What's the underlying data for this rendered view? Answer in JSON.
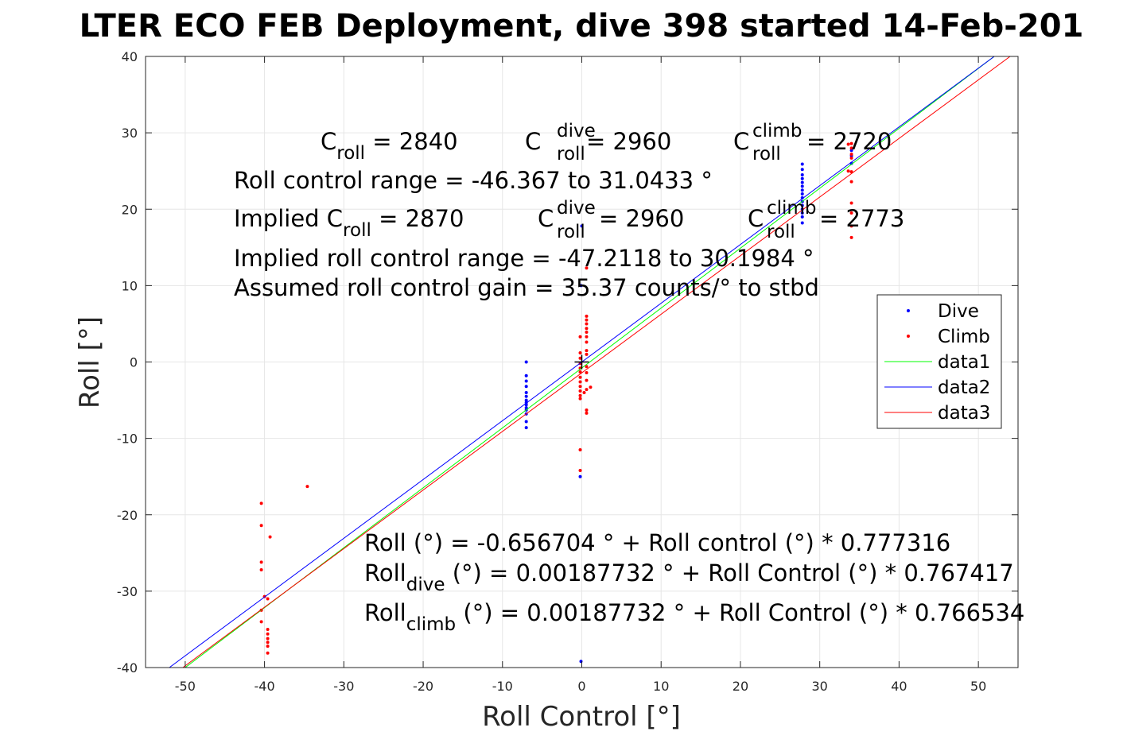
{
  "chart_data": {
    "type": "scatter",
    "title": "LTER ECO FEB Deployment, dive 398 started 14-Feb-201",
    "xlabel": "Roll Control [°]",
    "ylabel": "Roll [°]",
    "xlim": [
      -55,
      55
    ],
    "ylim": [
      -40,
      40
    ],
    "xticks": [
      -50,
      -40,
      -30,
      -20,
      -10,
      0,
      10,
      20,
      30,
      40,
      50
    ],
    "yticks": [
      -40,
      -30,
      -20,
      -10,
      0,
      10,
      20,
      30,
      40
    ],
    "grid": true,
    "legend_position": "right",
    "series": [
      {
        "name": "Dive",
        "kind": "points",
        "color": "#0000ff",
        "points": [
          [
            -7,
            0
          ],
          [
            -7,
            -1.8
          ],
          [
            -7,
            -2.5
          ],
          [
            -7,
            -3.2
          ],
          [
            -7,
            -4
          ],
          [
            -7,
            -4.5
          ],
          [
            -7,
            -5
          ],
          [
            -7,
            -5.3
          ],
          [
            -7,
            -5.6
          ],
          [
            -7,
            -6
          ],
          [
            -7,
            -6.3
          ],
          [
            -7,
            -6.8
          ],
          [
            -7,
            -7.8
          ],
          [
            -7,
            -8.6
          ],
          [
            -0.2,
            -15
          ],
          [
            -0.1,
            -39.2
          ],
          [
            0,
            17.8
          ],
          [
            -0.1,
            10
          ],
          [
            27.8,
            18.2
          ],
          [
            27.8,
            19
          ],
          [
            27.8,
            19.5
          ],
          [
            27.8,
            20
          ],
          [
            27.8,
            20.5
          ],
          [
            27.8,
            21
          ],
          [
            27.8,
            21.5
          ],
          [
            27.8,
            22
          ],
          [
            27.8,
            22.5
          ],
          [
            27.8,
            23
          ],
          [
            27.8,
            23.5
          ],
          [
            27.8,
            24
          ],
          [
            27.8,
            24.5
          ],
          [
            27.8,
            25.2
          ],
          [
            27.8,
            25.9
          ],
          [
            34,
            26
          ],
          [
            34,
            27
          ],
          [
            34,
            27.7
          ]
        ]
      },
      {
        "name": "Climb",
        "kind": "points",
        "color": "#ff0000",
        "points": [
          [
            -40.4,
            -18.5
          ],
          [
            -40.4,
            -21.4
          ],
          [
            -40.4,
            -26.2
          ],
          [
            -40.4,
            -27.2
          ],
          [
            -40.4,
            -32.5
          ],
          [
            -40.4,
            -34
          ],
          [
            -40,
            -30.7
          ],
          [
            -39.6,
            -31
          ],
          [
            -39.3,
            -22.9
          ],
          [
            -34.6,
            -16.3
          ],
          [
            -39.6,
            -35
          ],
          [
            -39.6,
            -35.6
          ],
          [
            -39.6,
            -36.2
          ],
          [
            -39.6,
            -36.7
          ],
          [
            -39.6,
            -37.2
          ],
          [
            -39.6,
            -38.1
          ],
          [
            -0.2,
            3.3
          ],
          [
            -0.2,
            1.2
          ],
          [
            -0.2,
            0.5
          ],
          [
            -0.2,
            -0.2
          ],
          [
            -0.2,
            -0.8
          ],
          [
            -0.2,
            -1.3
          ],
          [
            -0.2,
            -2
          ],
          [
            -0.2,
            -2.6
          ],
          [
            -0.2,
            -3.2
          ],
          [
            -0.2,
            -3.8
          ],
          [
            -0.2,
            -4.4
          ],
          [
            -0.2,
            -4.8
          ],
          [
            -0.2,
            -11.5
          ],
          [
            -0.2,
            -14.2
          ],
          [
            0.6,
            12.3
          ],
          [
            0.6,
            6
          ],
          [
            0.6,
            5.5
          ],
          [
            0.6,
            5
          ],
          [
            0.6,
            4.4
          ],
          [
            0.6,
            3.9
          ],
          [
            0.6,
            3.3
          ],
          [
            0.6,
            2.6
          ],
          [
            0.6,
            1.5
          ],
          [
            0.6,
            1
          ],
          [
            0.6,
            -0.6
          ],
          [
            0.6,
            -1.4
          ],
          [
            0.6,
            -2.4
          ],
          [
            0.6,
            -3.6
          ],
          [
            0.6,
            -6.3
          ],
          [
            0.6,
            -6.7
          ],
          [
            1.1,
            -3.3
          ],
          [
            0.3,
            -4
          ],
          [
            34,
            28.6
          ],
          [
            34,
            28
          ],
          [
            34,
            27.2
          ],
          [
            34,
            26.7
          ],
          [
            34,
            24.9
          ],
          [
            34,
            23.6
          ],
          [
            34,
            20.8
          ],
          [
            34,
            19.5
          ],
          [
            34,
            17.8
          ],
          [
            34,
            16.3
          ],
          [
            33.6,
            25
          ],
          [
            33.6,
            28.5
          ]
        ]
      },
      {
        "name": "data1",
        "kind": "line",
        "color": "#00ff00",
        "x": [
          -50,
          52
        ],
        "y": [
          -40,
          40
        ]
      },
      {
        "name": "data2",
        "kind": "line",
        "color": "#0000ff",
        "x": [
          -52,
          52
        ],
        "y": [
          -40,
          40
        ]
      },
      {
        "name": "data3",
        "kind": "line",
        "color": "#ff0000",
        "x": [
          -50.3,
          54
        ],
        "y": [
          -40,
          40
        ]
      }
    ],
    "origin_marker": {
      "x": 0,
      "y": 0
    }
  },
  "annotations": {
    "line1": {
      "c_roll_label": "C",
      "c_roll_sub": "roll",
      "c_roll_value": " = 2840",
      "c_dive_label": "C",
      "c_dive_sup": "dive",
      "c_dive_sub": "roll",
      "c_dive_value": " = 2960",
      "c_climb_label": "C",
      "c_climb_sup": "climb",
      "c_climb_sub": "roll",
      "c_climb_value": " = 2720"
    },
    "range_text": "Roll control range = -46.367 to 31.0433 °",
    "line3": {
      "implied_prefix": "Implied C",
      "implied_sub": "roll",
      "implied_value": " = 2870",
      "dive_label": "C",
      "dive_sup": "dive",
      "dive_sub": "roll",
      "dive_value": " = 2960",
      "climb_label": "C",
      "climb_sup": "climb",
      "climb_sub": "roll",
      "climb_value": " = 2773"
    },
    "implied_range_text": "Implied roll control range = -47.2118 to 30.1984 °",
    "gain_text": "Assumed roll control gain = 35.37 counts/° to stbd",
    "fit_text": "Roll (°) = -0.656704 ° + Roll control (°) * 0.777316",
    "fit_dive": {
      "prefix": "Roll",
      "sub": "dive",
      "rest": " (°) = 0.00187732 ° + Roll Control (°) * 0.767417"
    },
    "fit_climb": {
      "prefix": "Roll",
      "sub": "climb",
      "rest": " (°) = 0.00187732 ° + Roll Control (°) * 0.766534"
    }
  }
}
